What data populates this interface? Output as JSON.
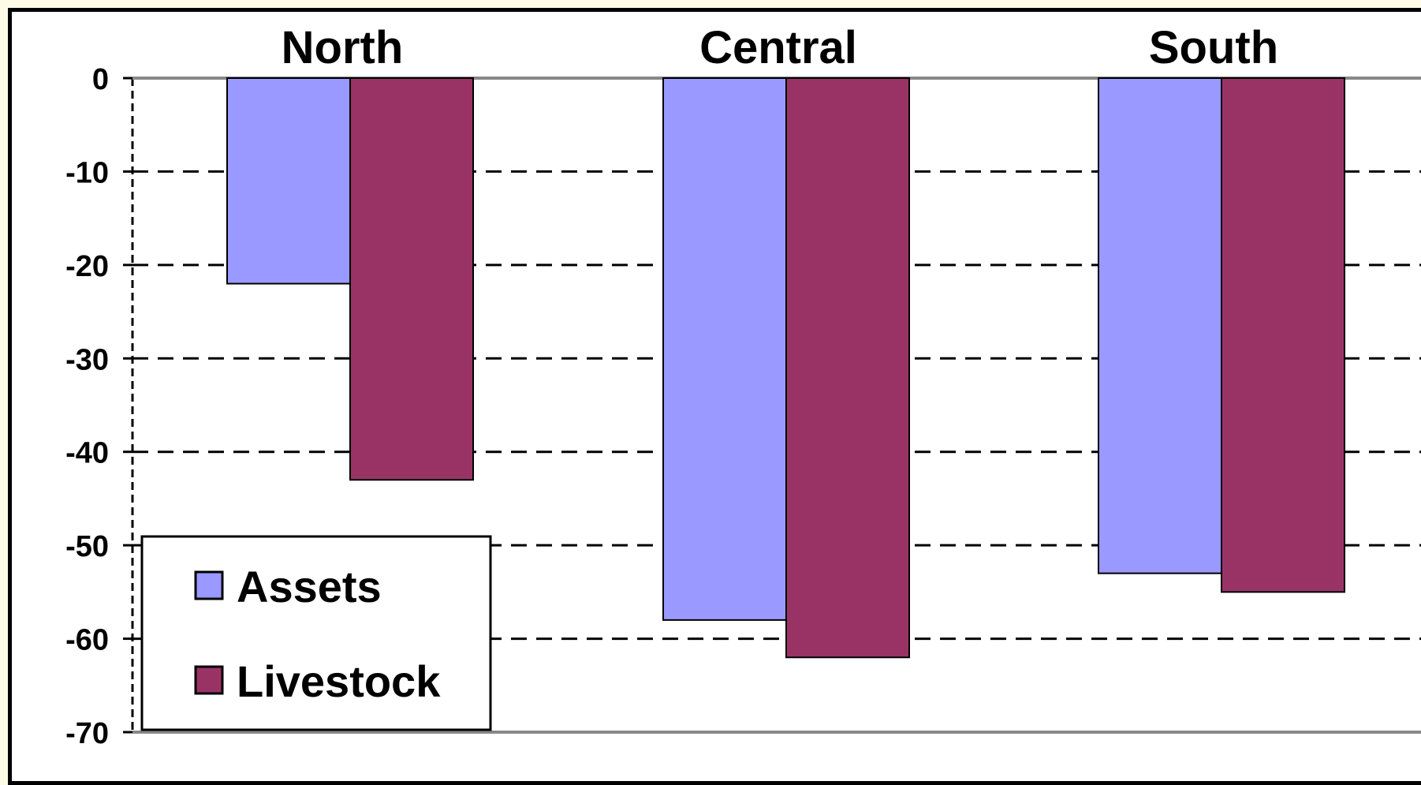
{
  "chart_data": {
    "type": "bar",
    "categories": [
      "North",
      "Central",
      "South"
    ],
    "series": [
      {
        "name": "Assets",
        "values": [
          -22,
          -58,
          -53
        ],
        "color": "#9999ff"
      },
      {
        "name": "Livestock",
        "values": [
          -43,
          -62,
          -55
        ],
        "color": "#993366"
      }
    ],
    "ylim": [
      -70,
      0
    ],
    "yticks": [
      0,
      -10,
      -20,
      -30,
      -40,
      -50,
      -60,
      -70
    ],
    "grid": true,
    "grid_style": "dashed",
    "legend_position": "bottom-left",
    "title": "",
    "xlabel": "",
    "ylabel": ""
  }
}
